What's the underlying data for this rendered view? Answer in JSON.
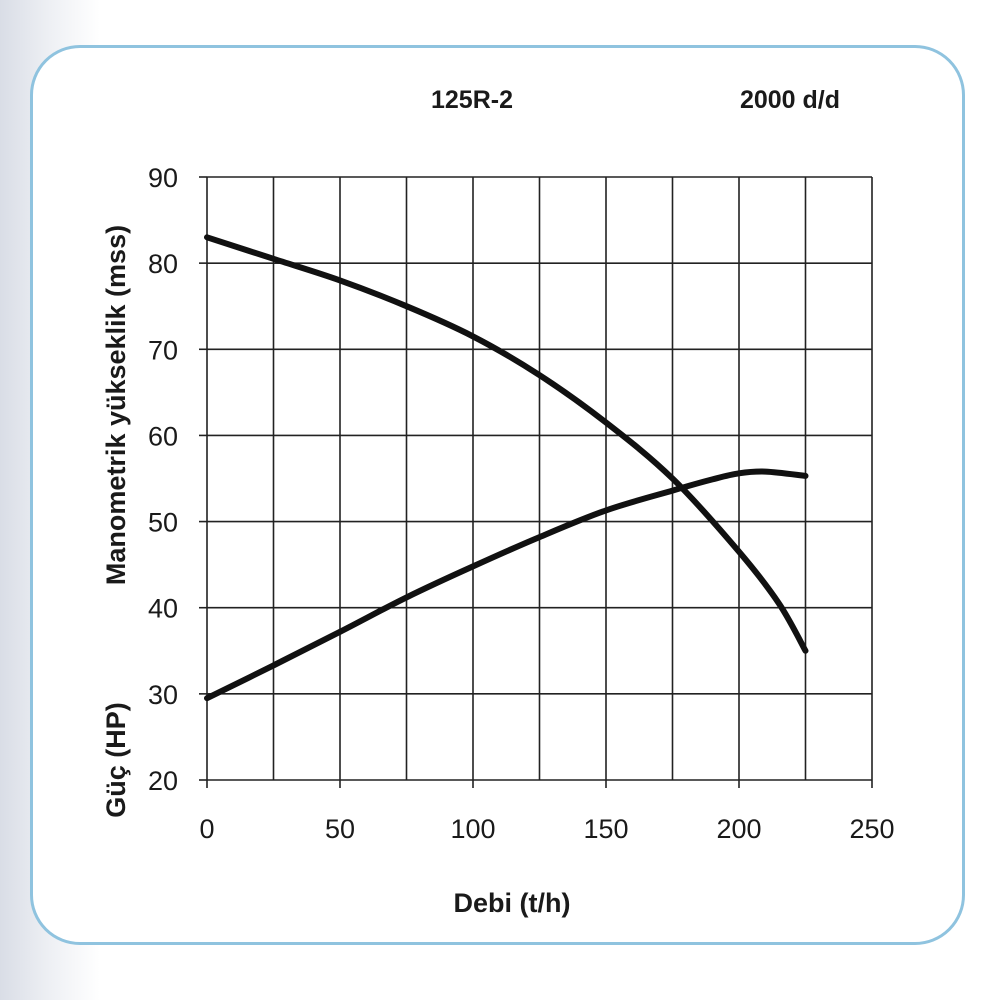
{
  "chart_data": {
    "type": "line",
    "header": {
      "model": "125R-2",
      "speed": "2000 d/d"
    },
    "xlabel": "Debi (t/h)",
    "ylabel_head": "Manometrik yükseklik (mss)",
    "ylabel_power": "Güç (HP)",
    "xlim": [
      0,
      250
    ],
    "ylim": [
      20,
      90
    ],
    "x_ticks": [
      0,
      50,
      100,
      150,
      200,
      250
    ],
    "y_ticks": [
      20,
      30,
      40,
      50,
      60,
      70,
      80,
      90
    ],
    "grid": true,
    "series": [
      {
        "x": [
          0,
          25,
          50,
          75,
          100,
          125,
          150,
          175,
          200,
          215,
          225
        ],
        "y": [
          83,
          80.5,
          78,
          75,
          71.5,
          67,
          61.5,
          55,
          46.5,
          40.5,
          35
        ]
      },
      {
        "x": [
          0,
          25,
          50,
          75,
          100,
          125,
          150,
          175,
          190,
          200,
          210,
          225
        ],
        "y": [
          29.5,
          33.3,
          37.2,
          41.2,
          44.8,
          48.2,
          51.3,
          53.6,
          54.9,
          55.6,
          55.8,
          55.3
        ]
      }
    ],
    "color": "#111111"
  }
}
